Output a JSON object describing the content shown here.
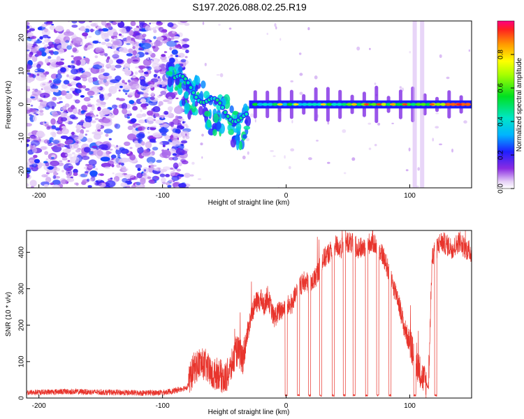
{
  "title": "S197.2026.088.02.25.R19",
  "colors": {
    "snr_line": "#e8342c",
    "axis": "#000000",
    "noise_purple": "#8a2be2"
  },
  "chart_data": [
    {
      "type": "heatmap",
      "name": "spectrogram",
      "xlabel": "Height of straight line (km)",
      "ylabel": "Frequency (Hz)",
      "xlim": [
        -210,
        150
      ],
      "ylim": [
        -25,
        25
      ],
      "xticks": [
        -200,
        -100,
        0,
        100
      ],
      "yticks": [
        -20,
        -10,
        0,
        10,
        20
      ],
      "colorbar": {
        "label": "Normalized spectral amplitude",
        "range": [
          0.0,
          1.0
        ],
        "ticks": [
          0.0,
          0.2,
          0.4,
          0.6,
          0.8
        ]
      },
      "regions": [
        {
          "name": "noise",
          "x_from": -210,
          "x_to": -90,
          "amplitude": 0.15
        },
        {
          "name": "acquisition",
          "x_from": -95,
          "x_to": -30,
          "amplitude": 0.45,
          "freq_from": 8,
          "freq_to": -6
        },
        {
          "name": "tracking",
          "x_from": -30,
          "x_to": 150,
          "amplitude": 0.7,
          "freq": 0
        }
      ]
    },
    {
      "type": "line",
      "name": "snr",
      "xlabel": "Height of straight line (km)",
      "ylabel": "SNR (10 * v/v)",
      "xlim": [
        -210,
        150
      ],
      "ylim": [
        0,
        460
      ],
      "xticks": [
        -200,
        -100,
        0,
        100
      ],
      "yticks": [
        0,
        100,
        200,
        300,
        400
      ],
      "series": [
        {
          "name": "SNR",
          "x": [
            -210,
            -180,
            -150,
            -120,
            -100,
            -90,
            -85,
            -80,
            -75,
            -70,
            -65,
            -60,
            -55,
            -50,
            -45,
            -40,
            -35,
            -30,
            -28,
            -25,
            -20,
            -18,
            -15,
            -10,
            -5,
            0,
            5,
            10,
            15,
            20,
            25,
            30,
            35,
            40,
            45,
            50,
            55,
            60,
            65,
            70,
            75,
            80,
            85,
            90,
            95,
            100,
            105,
            110,
            115,
            118,
            120,
            125,
            130,
            135,
            140,
            145,
            150
          ],
          "values": [
            15,
            18,
            16,
            14,
            15,
            20,
            25,
            30,
            80,
            95,
            90,
            60,
            70,
            50,
            80,
            130,
            110,
            200,
            230,
            260,
            270,
            250,
            280,
            220,
            240,
            250,
            260,
            300,
            320,
            310,
            340,
            380,
            400,
            420,
            410,
            430,
            420,
            410,
            420,
            430,
            410,
            380,
            320,
            280,
            200,
            150,
            100,
            60,
            30,
            380,
            400,
            430,
            420,
            410,
            430,
            410,
            400
          ],
          "dropouts": [
            0,
            10,
            19,
            28,
            38,
            47,
            55,
            65,
            74,
            84,
            104,
            121
          ]
        }
      ]
    }
  ]
}
